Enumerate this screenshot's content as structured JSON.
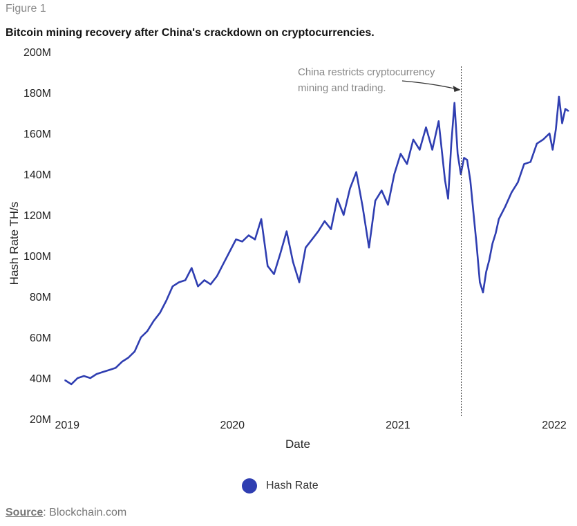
{
  "figure_label": "Figure 1",
  "source": {
    "label": "Source",
    "text": ": Blockchain.com"
  },
  "colors": {
    "line": "#2f3eb1",
    "annotation": "#333333",
    "axis_text": "#222222",
    "note_text": "#888888"
  },
  "chart_data": {
    "type": "line",
    "title": "Bitcoin mining recovery after China's crackdown on cryptocurrencies.",
    "xlabel": "Date",
    "ylabel": "Hash Rate TH/s",
    "ylim": [
      20,
      200
    ],
    "y_unit": "millions TH/s",
    "y_ticks": [
      20,
      40,
      60,
      80,
      100,
      120,
      140,
      160,
      180,
      200
    ],
    "y_tick_labels": [
      "20M",
      "40M",
      "60M",
      "80M",
      "100M",
      "120M",
      "140M",
      "160M",
      "180M",
      "200M"
    ],
    "xlim": [
      "2018-12-27",
      "2022-01-15"
    ],
    "x_ticks": [
      "2019-01-01",
      "2020-01-01",
      "2021-01-01",
      "2022-01-01"
    ],
    "x_tick_labels": [
      "2019",
      "2020",
      "2021",
      "2022"
    ],
    "grid": false,
    "legend_position": "bottom-center",
    "series": [
      {
        "name": "Hash Rate",
        "x": [
          "2018-12-27",
          "2019-01-10",
          "2019-01-24",
          "2019-02-07",
          "2019-02-21",
          "2019-03-07",
          "2019-03-21",
          "2019-04-04",
          "2019-04-18",
          "2019-05-02",
          "2019-05-16",
          "2019-05-30",
          "2019-06-13",
          "2019-06-27",
          "2019-07-11",
          "2019-07-25",
          "2019-08-08",
          "2019-08-22",
          "2019-09-05",
          "2019-09-19",
          "2019-10-03",
          "2019-10-17",
          "2019-10-31",
          "2019-11-14",
          "2019-11-28",
          "2019-12-12",
          "2019-12-26",
          "2020-01-09",
          "2020-01-23",
          "2020-02-06",
          "2020-02-20",
          "2020-03-05",
          "2020-03-19",
          "2020-04-02",
          "2020-04-16",
          "2020-04-30",
          "2020-05-14",
          "2020-05-28",
          "2020-06-11",
          "2020-06-25",
          "2020-07-09",
          "2020-07-23",
          "2020-08-06",
          "2020-08-20",
          "2020-09-03",
          "2020-09-17",
          "2020-10-01",
          "2020-10-15",
          "2020-10-29",
          "2020-11-12",
          "2020-11-26",
          "2020-12-10",
          "2020-12-24",
          "2021-01-07",
          "2021-01-21",
          "2021-02-04",
          "2021-02-18",
          "2021-03-04",
          "2021-03-18",
          "2021-04-01",
          "2021-04-15",
          "2021-04-22",
          "2021-04-29",
          "2021-05-06",
          "2021-05-13",
          "2021-05-20",
          "2021-05-27",
          "2021-06-03",
          "2021-06-10",
          "2021-06-17",
          "2021-06-24",
          "2021-07-01",
          "2021-07-08",
          "2021-07-15",
          "2021-07-22",
          "2021-07-29",
          "2021-08-05",
          "2021-08-12",
          "2021-08-26",
          "2021-09-09",
          "2021-09-23",
          "2021-10-07",
          "2021-10-21",
          "2021-11-04",
          "2021-11-18",
          "2021-12-02",
          "2021-12-09",
          "2021-12-16",
          "2021-12-23",
          "2021-12-30",
          "2022-01-06",
          "2022-01-13"
        ],
        "values": [
          39,
          37,
          40,
          41,
          40,
          42,
          43,
          44,
          45,
          48,
          50,
          53,
          60,
          63,
          68,
          72,
          78,
          85,
          87,
          88,
          94,
          85,
          88,
          86,
          90,
          96,
          102,
          108,
          107,
          110,
          108,
          118,
          95,
          91,
          101,
          112,
          97,
          87,
          104,
          108,
          112,
          117,
          113,
          128,
          120,
          133,
          141,
          124,
          104,
          127,
          132,
          125,
          140,
          150,
          145,
          157,
          152,
          163,
          152,
          166,
          137,
          128,
          155,
          175,
          150,
          140,
          148,
          147,
          137,
          121,
          105,
          87,
          82,
          92,
          98,
          106,
          111,
          118,
          124,
          131,
          136,
          145,
          146,
          155,
          157,
          160,
          152,
          162,
          178,
          165,
          172,
          171
        ]
      }
    ],
    "annotations": [
      {
        "x": "2021-05-21",
        "type": "vertical-line",
        "text": "China restricts cryptocurrency mining and trading."
      }
    ]
  }
}
